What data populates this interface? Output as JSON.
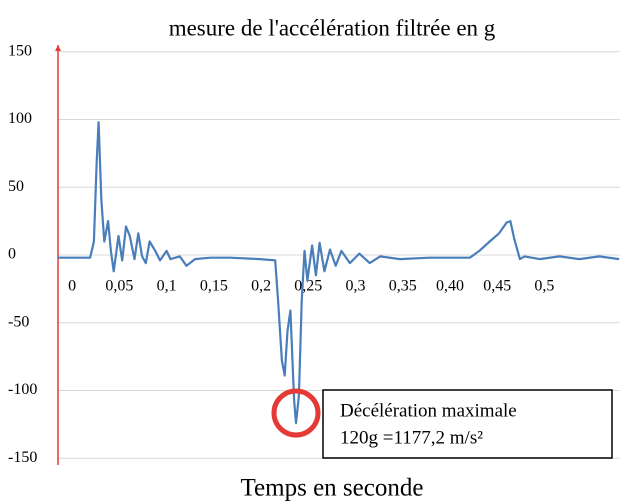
{
  "chart_data": {
    "type": "line",
    "title": "mesure de l'accélération filtrée en g",
    "x_label": "Temps en seconde",
    "xlim": [
      -0.015,
      0.58
    ],
    "xticks": [
      0,
      {
        "value": 0.05,
        "label": "0,05"
      },
      {
        "value": 0.1,
        "label": "0,1"
      },
      {
        "value": 0.15,
        "label": "0,15"
      },
      {
        "value": 0.2,
        "label": "0,2"
      },
      {
        "value": 0.25,
        "label": "0,25"
      },
      {
        "value": 0.3,
        "label": "0,3"
      },
      {
        "value": 0.35,
        "label": "0,35"
      },
      {
        "value": 0.4,
        "label": "0,40"
      },
      {
        "value": 0.45,
        "label": "0,45"
      },
      {
        "value": 0.5,
        "label": "0,5"
      }
    ],
    "ylim": [
      -155,
      155
    ],
    "yticks": [
      -150,
      -100,
      -50,
      0,
      50,
      100,
      150
    ],
    "grid": true,
    "axis_color": "#e53935",
    "series": [
      {
        "color": "#4a7ebb",
        "x": [
          -0.015,
          0.019,
          0.023,
          0.026,
          0.028,
          0.031,
          0.034,
          0.038,
          0.041,
          0.044,
          0.049,
          0.053,
          0.057,
          0.061,
          0.066,
          0.07,
          0.074,
          0.078,
          0.082,
          0.088,
          0.093,
          0.1,
          0.104,
          0.114,
          0.121,
          0.13,
          0.146,
          0.167,
          0.199,
          0.215,
          0.218,
          0.222,
          0.225,
          0.228,
          0.231,
          0.235,
          0.237,
          0.24,
          0.243,
          0.246,
          0.249,
          0.254,
          0.258,
          0.262,
          0.267,
          0.273,
          0.279,
          0.285,
          0.294,
          0.304,
          0.315,
          0.326,
          0.347,
          0.378,
          0.421,
          0.431,
          0.442,
          0.452,
          0.46,
          0.464,
          0.468,
          0.474,
          0.479,
          0.495,
          0.516,
          0.537,
          0.558,
          0.579
        ],
        "values": [
          -2,
          -2,
          10,
          69,
          98,
          40,
          10,
          25,
          3,
          -12,
          14,
          -4,
          21,
          14,
          -3,
          16,
          -1,
          -6,
          10,
          3,
          -4,
          3,
          -3,
          -1,
          -8,
          -3,
          -2,
          -2,
          -3,
          -4,
          -34,
          -78,
          -89,
          -56,
          -41,
          -107,
          -124,
          -104,
          -34,
          3,
          -19,
          7,
          -15,
          9,
          -12,
          4,
          -8,
          3,
          -6,
          1,
          -6,
          -1,
          -3,
          -2,
          -2,
          3,
          10,
          16,
          24,
          25,
          12,
          -3,
          -1,
          -3,
          -1,
          -3,
          -1,
          -3
        ]
      }
    ],
    "annotations": [
      "Décélération maximale",
      "120g =1177,2 m/s²"
    ],
    "highlight_color": "#e53935"
  }
}
